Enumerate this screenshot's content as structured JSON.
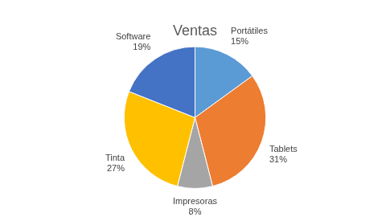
{
  "chart_data": {
    "type": "pie",
    "title": "Ventas",
    "categories": [
      "Portátiles",
      "Tablets",
      "Impresoras",
      "Tinta",
      "Software"
    ],
    "values": [
      15,
      31,
      8,
      27,
      19
    ],
    "value_labels": [
      "15%",
      "31%",
      "8%",
      "27%",
      "19%"
    ],
    "colors": [
      "#5b9bd5",
      "#ed7d31",
      "#a5a5a5",
      "#ffc000",
      "#4472c4"
    ],
    "data_labels": true
  }
}
